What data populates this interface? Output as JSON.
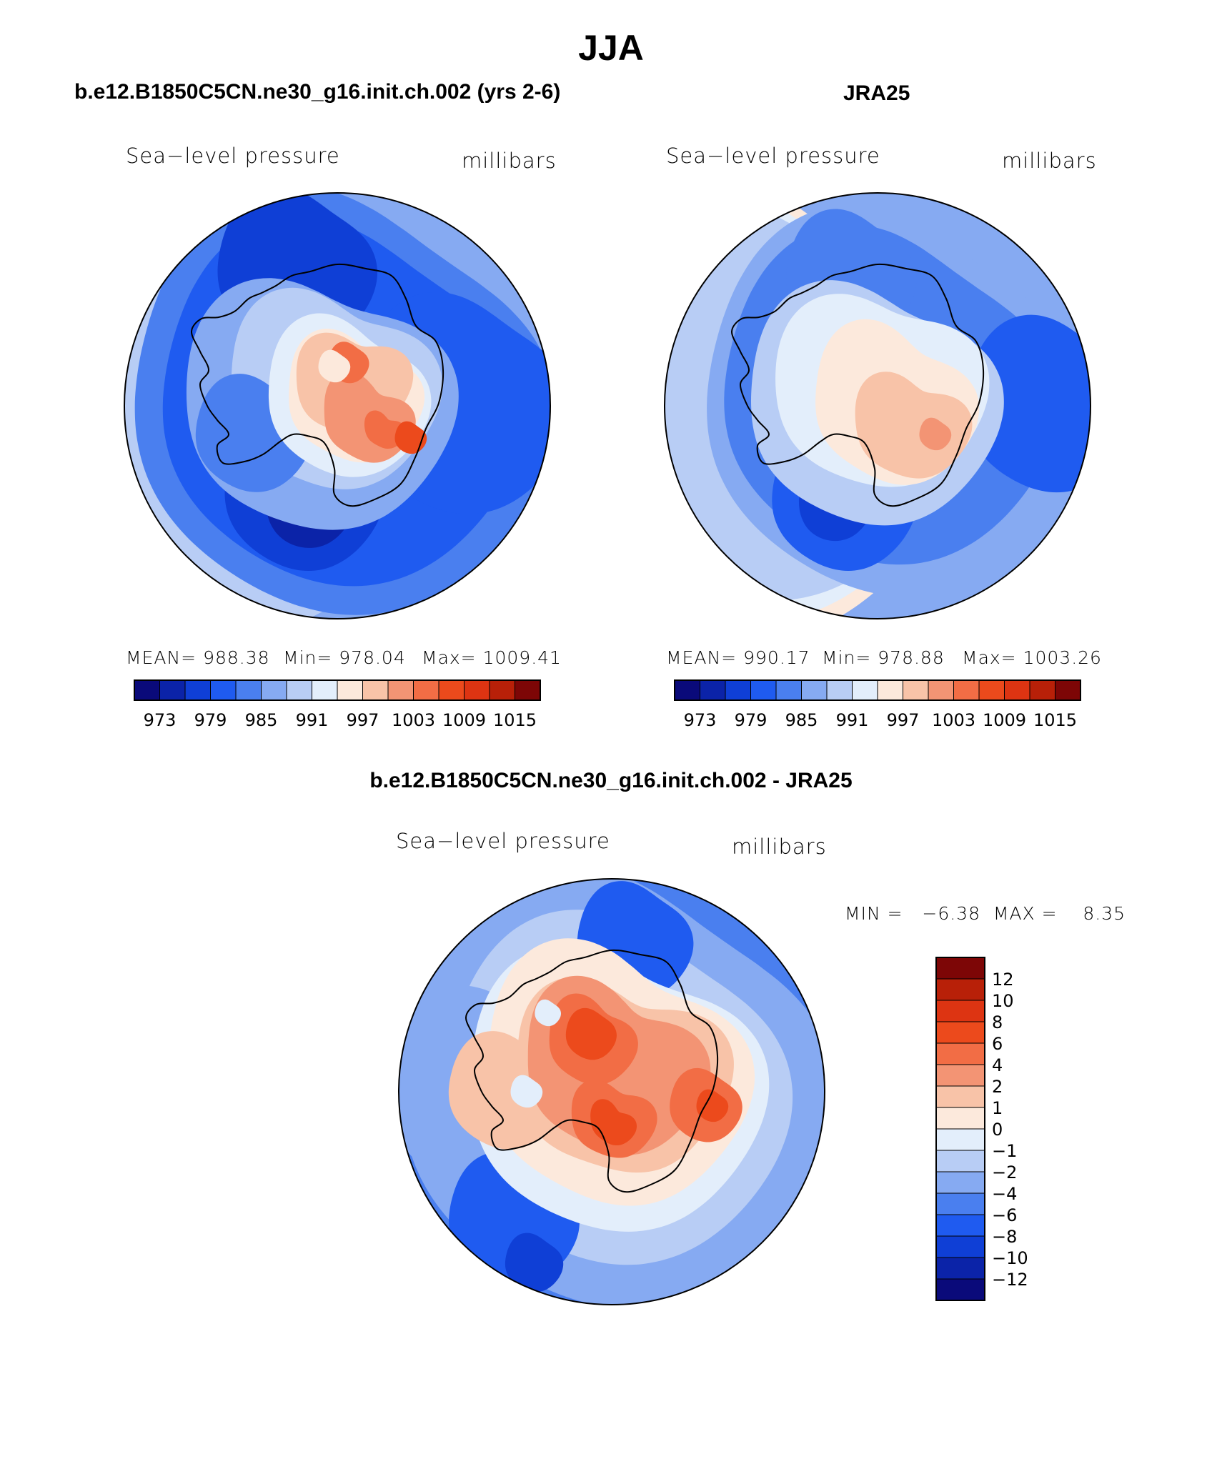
{
  "page": {
    "main_title": "JJA",
    "panel_left_title": "b.e12.B1850C5CN.ne30_g16.init.ch.002 (yrs 2-6)",
    "panel_right_title": "JRA25",
    "panel_diff_title": "b.e12.B1850C5CN.ne30_g16.init.ch.002 - JRA25"
  },
  "chart_data": [
    {
      "type": "contour-map (polar stereographic, Southern Hemisphere)",
      "title": "b.e12.B1850C5CN.ne30_g16.init.ch.002 (yrs 2-6)",
      "variable": "Sea−level pressure",
      "units": "millibars",
      "stats": {
        "mean_text": "MEAN= 988.38",
        "min_text": "Min= 978.04",
        "max_text": "Max= 1009.41",
        "mean": 988.38,
        "min": 978.04,
        "max": 1009.41
      },
      "colorbar": {
        "orientation": "horizontal",
        "levels": [
          973,
          976,
          979,
          982,
          985,
          988,
          991,
          994,
          997,
          1000,
          1003,
          1006,
          1009,
          1012,
          1015
        ],
        "tick_labels": [
          "973",
          "979",
          "985",
          "991",
          "997",
          "1003",
          "1009",
          "1015"
        ],
        "colors": [
          "#0a0a7a",
          "#0b23a8",
          "#0f3fd6",
          "#1f5bf0",
          "#4a7fef",
          "#86aaf2",
          "#b8cdf5",
          "#e3eefb",
          "#fce9dc",
          "#f8c3a8",
          "#f39474",
          "#f26d45",
          "#ec4a1c",
          "#dd3412",
          "#b82008",
          "#7d0606"
        ]
      }
    },
    {
      "type": "contour-map (polar stereographic, Southern Hemisphere)",
      "title": "JRA25",
      "variable": "Sea−level pressure",
      "units": "millibars",
      "stats": {
        "mean_text": "MEAN= 990.17",
        "min_text": "Min= 978.88",
        "max_text": "Max= 1003.26",
        "mean": 990.17,
        "min": 978.88,
        "max": 1003.26
      },
      "colorbar": {
        "orientation": "horizontal",
        "levels": [
          973,
          976,
          979,
          982,
          985,
          988,
          991,
          994,
          997,
          1000,
          1003,
          1006,
          1009,
          1012,
          1015
        ],
        "tick_labels": [
          "973",
          "979",
          "985",
          "991",
          "997",
          "1003",
          "1009",
          "1015"
        ],
        "colors": [
          "#0a0a7a",
          "#0b23a8",
          "#0f3fd6",
          "#1f5bf0",
          "#4a7fef",
          "#86aaf2",
          "#b8cdf5",
          "#e3eefb",
          "#fce9dc",
          "#f8c3a8",
          "#f39474",
          "#f26d45",
          "#ec4a1c",
          "#dd3412",
          "#b82008",
          "#7d0606"
        ]
      }
    },
    {
      "type": "contour-map (polar stereographic, Southern Hemisphere)",
      "title": "b.e12.B1850C5CN.ne30_g16.init.ch.002 - JRA25",
      "variable": "Sea−level pressure",
      "units": "millibars",
      "stats": {
        "minmax_text": "MIN =   −6.38  MAX =    8.35",
        "min": -6.38,
        "max": 8.35
      },
      "colorbar": {
        "orientation": "vertical",
        "levels": [
          12,
          10,
          8,
          6,
          4,
          2,
          1,
          0,
          -1,
          -2,
          -4,
          -6,
          -8,
          -10,
          -12
        ],
        "tick_labels": [
          "12",
          "10",
          "8",
          "6",
          "4",
          "2",
          "1",
          "0",
          "−1",
          "−2",
          "−4",
          "−6",
          "−8",
          "−10",
          "−12"
        ],
        "colors": [
          "#7d0606",
          "#b82008",
          "#dd3412",
          "#ec4a1c",
          "#f26d45",
          "#f39474",
          "#f8c3a8",
          "#fce9dc",
          "#e3eefb",
          "#b8cdf5",
          "#86aaf2",
          "#4a7fef",
          "#1f5bf0",
          "#0f3fd6",
          "#0b23a8",
          "#0a0a7a"
        ]
      }
    }
  ]
}
